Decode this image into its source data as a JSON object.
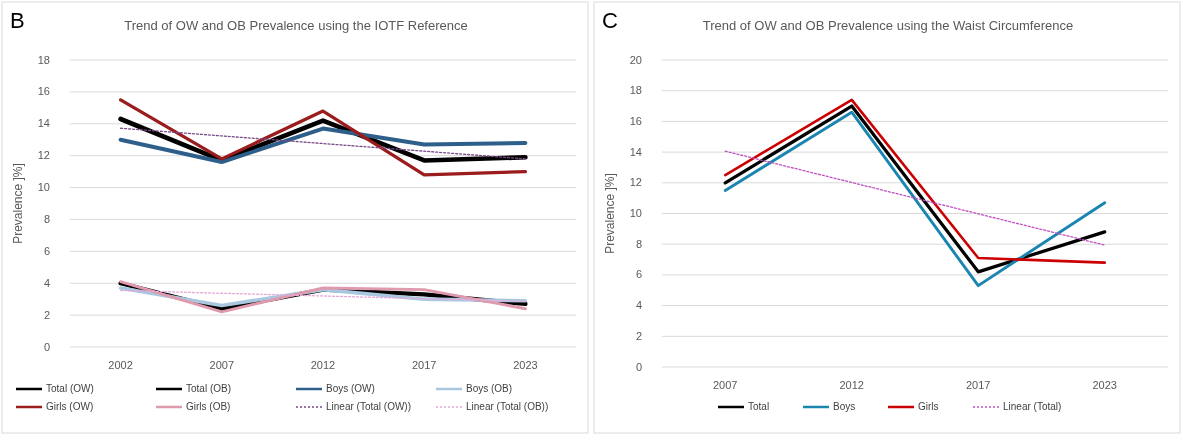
{
  "chart_data": [
    {
      "type": "line",
      "title": "Trend of OW and OB Prevalence using the IOTF Reference",
      "ylabel": "Prevalence ]%]",
      "annotations": [
        "B"
      ],
      "categories": [
        "2002",
        "2007",
        "2012",
        "2017",
        "2023"
      ],
      "ylim": [
        0,
        18
      ],
      "yticks": [
        0,
        2,
        4,
        6,
        8,
        10,
        12,
        14,
        16,
        18
      ],
      "grid": "y",
      "legend": "bottom",
      "line_style": "solid",
      "series": [
        {
          "name": "Total (OW)",
          "color": "#000000",
          "values": [
            14.3,
            11.7,
            14.2,
            11.7,
            11.9
          ]
        },
        {
          "name": "Total (OB)",
          "color": "#000000",
          "values": [
            4.0,
            2.4,
            3.6,
            3.3,
            2.7
          ]
        },
        {
          "name": "Boys (OW)",
          "color": "#2e5f8a",
          "values": [
            13.0,
            11.6,
            13.7,
            12.7,
            12.8
          ]
        },
        {
          "name": "Boys (OB)",
          "color": "#a9c8e0",
          "values": [
            3.7,
            2.6,
            3.6,
            3.0,
            2.9
          ]
        },
        {
          "name": "Girls (OW)",
          "color": "#9b1c1c",
          "values": [
            15.5,
            11.8,
            14.8,
            10.8,
            11.0
          ]
        },
        {
          "name": "Girls (OB)",
          "color": "#e09aae",
          "values": [
            4.1,
            2.2,
            3.7,
            3.6,
            2.4
          ]
        },
        {
          "name": "Linear (Total (OW))",
          "color": "#7a4a8a",
          "line_style": "dotted",
          "values": [
            13.72,
            13.24,
            12.76,
            12.28,
            11.8
          ]
        },
        {
          "name": "Linear (Total (OB))",
          "color": "#e8a8d8",
          "line_style": "dotted",
          "values": [
            3.54,
            3.37,
            3.2,
            3.03,
            2.86
          ]
        }
      ]
    },
    {
      "type": "line",
      "title": "Trend of OW and OB Prevalence using the Waist Circumference",
      "ylabel": "Prevalence ]%]",
      "annotations": [
        "C"
      ],
      "categories": [
        "2007",
        "2012",
        "2017",
        "2023"
      ],
      "ylim": [
        0,
        20
      ],
      "yticks": [
        0,
        2,
        4,
        6,
        8,
        10,
        12,
        14,
        16,
        18,
        20
      ],
      "grid": "y",
      "legend": "bottom",
      "line_style": "solid",
      "series": [
        {
          "name": "Total",
          "color": "#000000",
          "values": [
            12.0,
            17.0,
            6.2,
            8.8
          ]
        },
        {
          "name": "Boys",
          "color": "#1a85b0",
          "values": [
            11.5,
            16.6,
            5.3,
            10.7
          ]
        },
        {
          "name": "Girls",
          "color": "#cc0000",
          "values": [
            12.5,
            17.4,
            7.1,
            6.8
          ]
        },
        {
          "name": "Linear (Total)",
          "color": "#c050c0",
          "line_style": "dotted",
          "values": [
            14.06,
            12.02,
            9.98,
            7.94
          ]
        }
      ]
    }
  ]
}
